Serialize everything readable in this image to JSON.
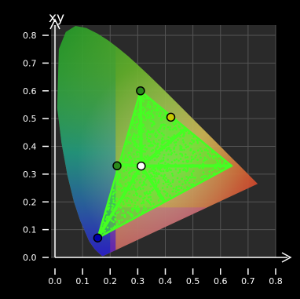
{
  "chart_data": {
    "type": "scatter",
    "title": "xy",
    "xlabel": "",
    "ylabel": "",
    "xlim": [
      0,
      0.8
    ],
    "ylim": [
      0,
      0.8
    ],
    "x_ticks": [
      "0.0",
      "0.1",
      "0.2",
      "0.3",
      "0.4",
      "0.5",
      "0.6",
      "0.7",
      "0.8"
    ],
    "y_ticks": [
      "0.0",
      "0.1",
      "0.2",
      "0.3",
      "0.4",
      "0.5",
      "0.6",
      "0.7",
      "0.8"
    ],
    "grid": true,
    "spectral_locus": [
      [
        0.1741,
        0.005
      ],
      [
        0.1738,
        0.0049
      ],
      [
        0.1736,
        0.0049
      ],
      [
        0.1733,
        0.0048
      ],
      [
        0.1726,
        0.0048
      ],
      [
        0.1714,
        0.0051
      ],
      [
        0.1689,
        0.0069
      ],
      [
        0.1644,
        0.0109
      ],
      [
        0.1566,
        0.0177
      ],
      [
        0.144,
        0.0297
      ],
      [
        0.1241,
        0.0578
      ],
      [
        0.0913,
        0.1327
      ],
      [
        0.0687,
        0.2007
      ],
      [
        0.0454,
        0.295
      ],
      [
        0.0235,
        0.4127
      ],
      [
        0.0082,
        0.5384
      ],
      [
        0.0139,
        0.7502
      ],
      [
        0.0389,
        0.812
      ],
      [
        0.0743,
        0.8338
      ],
      [
        0.1142,
        0.8262
      ],
      [
        0.1547,
        0.8059
      ],
      [
        0.1929,
        0.7816
      ],
      [
        0.2296,
        0.7543
      ],
      [
        0.2658,
        0.7243
      ],
      [
        0.3016,
        0.6923
      ],
      [
        0.3373,
        0.6589
      ],
      [
        0.3731,
        0.6245
      ],
      [
        0.4087,
        0.5896
      ],
      [
        0.4441,
        0.5547
      ],
      [
        0.4788,
        0.5202
      ],
      [
        0.5125,
        0.4866
      ],
      [
        0.5448,
        0.4544
      ],
      [
        0.5752,
        0.4242
      ],
      [
        0.6029,
        0.3965
      ],
      [
        0.627,
        0.3725
      ],
      [
        0.6482,
        0.3514
      ],
      [
        0.6658,
        0.334
      ],
      [
        0.6801,
        0.3197
      ],
      [
        0.6915,
        0.3083
      ],
      [
        0.7006,
        0.2993
      ],
      [
        0.7079,
        0.292
      ],
      [
        0.714,
        0.2859
      ],
      [
        0.719,
        0.2809
      ],
      [
        0.723,
        0.277
      ],
      [
        0.726,
        0.274
      ],
      [
        0.7283,
        0.2717
      ],
      [
        0.73,
        0.27
      ],
      [
        0.7347,
        0.2653
      ]
    ],
    "gamut_triangle": [
      [
        0.31,
        0.6
      ],
      [
        0.64,
        0.33
      ],
      [
        0.155,
        0.07
      ]
    ],
    "markers": [
      {
        "x": 0.31,
        "y": 0.6,
        "color": "#2a8a1a"
      },
      {
        "x": 0.42,
        "y": 0.505,
        "color": "#c8c800"
      },
      {
        "x": 0.225,
        "y": 0.33,
        "color": "#2a8a1a"
      },
      {
        "x": 0.3127,
        "y": 0.329,
        "color": "#ffffff"
      },
      {
        "x": 0.155,
        "y": 0.07,
        "color": "#0000aa"
      }
    ],
    "colors": {
      "background": "#000000",
      "plot_area": "#2a2a2a",
      "grid": "#555555",
      "axis": "#ffffff",
      "point_cloud": "#44ff22"
    }
  }
}
